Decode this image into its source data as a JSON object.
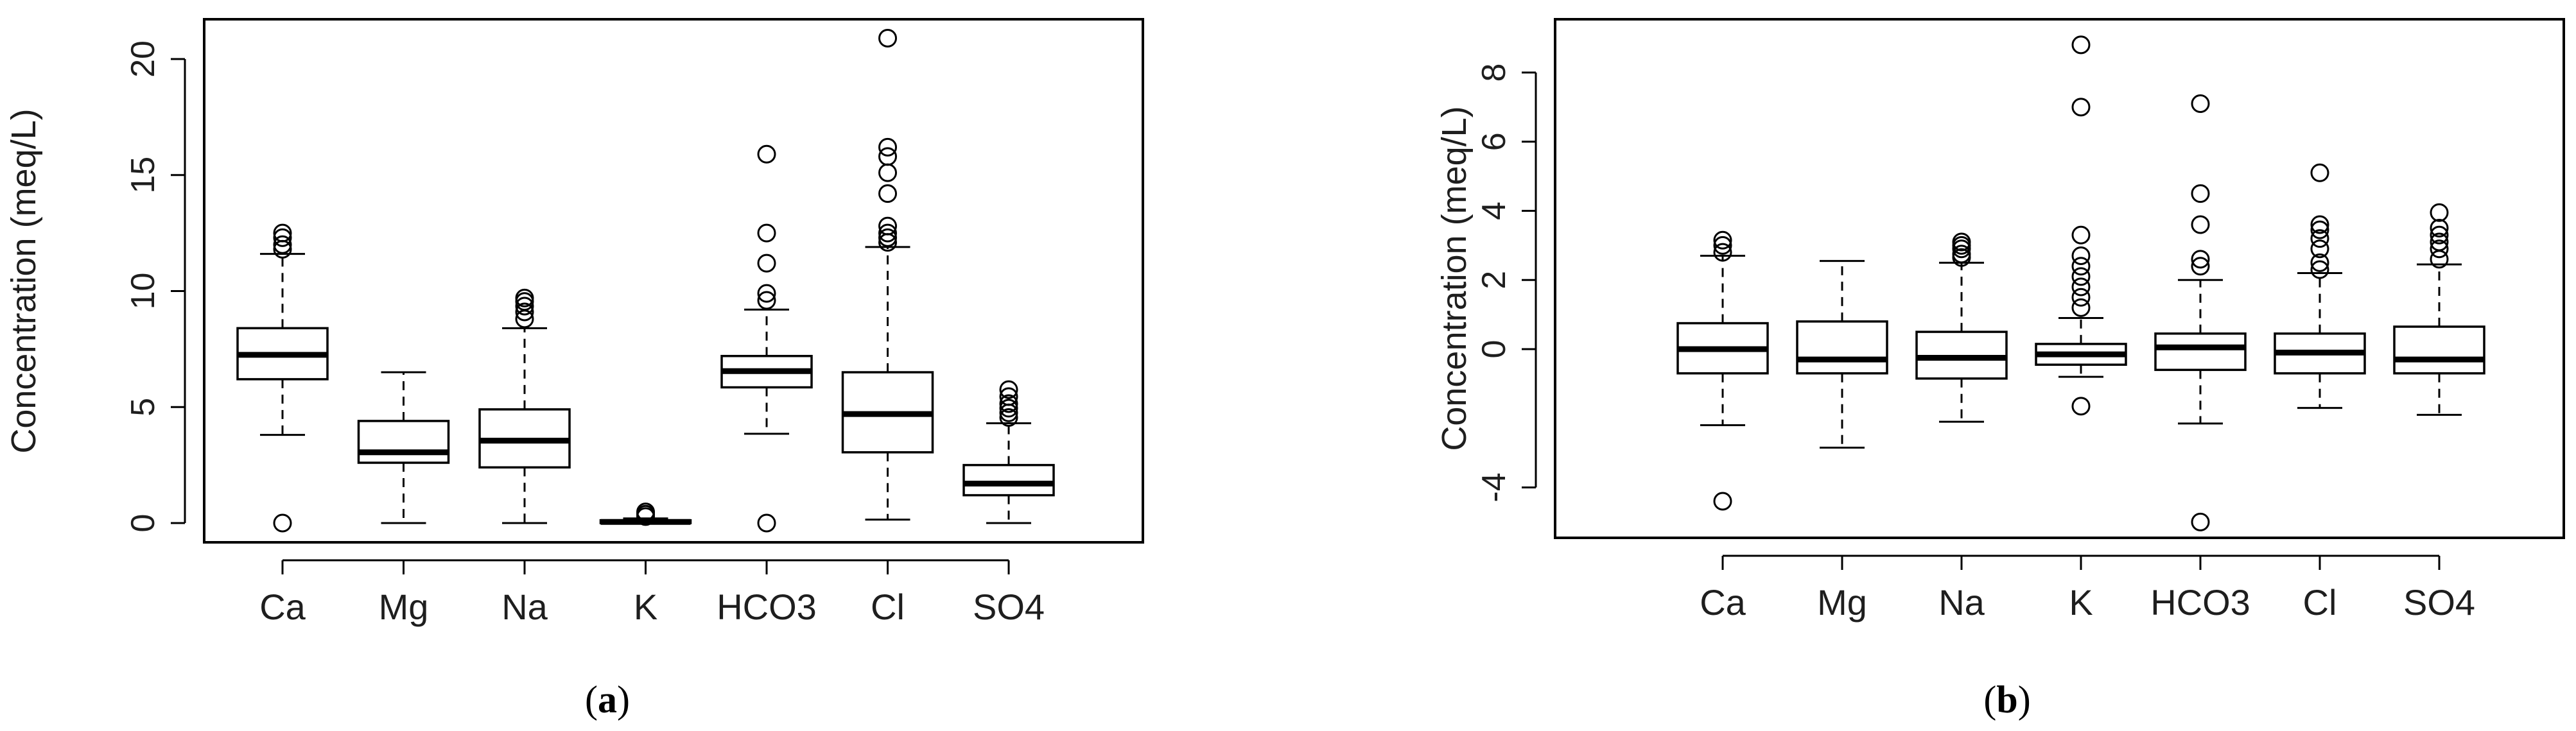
{
  "chart_data": [
    {
      "type": "boxplot",
      "panel_label": "a",
      "ylabel": "Concentration (meq/L)",
      "ylim": [
        0,
        21
      ],
      "yticks": [
        0,
        5,
        10,
        15,
        20
      ],
      "categories": [
        "Ca",
        "Mg",
        "Na",
        "K",
        "HCO3",
        "Cl",
        "SO4"
      ],
      "boxes": [
        {
          "name": "Ca",
          "whisker_low": 3.8,
          "q1": 6.2,
          "median": 7.25,
          "q3": 8.4,
          "whisker_high": 11.6,
          "outliers": [
            0.0,
            11.8,
            12.0,
            12.3,
            12.5
          ]
        },
        {
          "name": "Mg",
          "whisker_low": 0.0,
          "q1": 2.6,
          "median": 3.05,
          "q3": 4.4,
          "whisker_high": 6.5,
          "outliers": []
        },
        {
          "name": "Na",
          "whisker_low": 0.0,
          "q1": 2.4,
          "median": 3.55,
          "q3": 4.9,
          "whisker_high": 8.4,
          "outliers": [
            8.8,
            9.1,
            9.35,
            9.55,
            9.7
          ]
        },
        {
          "name": "K",
          "whisker_low": 0.0,
          "q1": 0.0,
          "median": 0.05,
          "q3": 0.12,
          "whisker_high": 0.2,
          "outliers": [
            0.28,
            0.38,
            0.48
          ]
        },
        {
          "name": "HCO3",
          "whisker_low": 3.85,
          "q1": 5.85,
          "median": 6.55,
          "q3": 7.2,
          "whisker_high": 9.2,
          "outliers": [
            0.0,
            9.6,
            9.9,
            11.2,
            12.5,
            15.9
          ]
        },
        {
          "name": "Cl",
          "whisker_low": 0.15,
          "q1": 3.05,
          "median": 4.7,
          "q3": 6.5,
          "whisker_high": 11.9,
          "outliers": [
            12.1,
            12.3,
            12.5,
            12.8,
            14.2,
            15.1,
            15.8,
            16.2,
            20.9
          ]
        },
        {
          "name": "SO4",
          "whisker_low": 0.0,
          "q1": 1.2,
          "median": 1.7,
          "q3": 2.5,
          "whisker_high": 4.3,
          "outliers": [
            4.55,
            4.75,
            4.95,
            5.15,
            5.45,
            5.75
          ]
        }
      ]
    },
    {
      "type": "boxplot",
      "panel_label": "b",
      "ylabel": "Concentration (meq/L)",
      "ylim": [
        -5.4,
        9.4
      ],
      "yticks": [
        -4,
        0,
        2,
        4,
        6,
        8
      ],
      "categories": [
        "Ca",
        "Mg",
        "Na",
        "K",
        "HCO3",
        "Cl",
        "SO4"
      ],
      "boxes": [
        {
          "name": "Ca",
          "whisker_low": -2.2,
          "q1": -0.7,
          "median": 0.0,
          "q3": 0.75,
          "whisker_high": 2.7,
          "outliers": [
            -4.4,
            2.8,
            3.0,
            3.15
          ]
        },
        {
          "name": "Mg",
          "whisker_low": -2.85,
          "q1": -0.7,
          "median": -0.3,
          "q3": 0.8,
          "whisker_high": 2.55,
          "outliers": []
        },
        {
          "name": "Na",
          "whisker_low": -2.1,
          "q1": -0.85,
          "median": -0.25,
          "q3": 0.5,
          "whisker_high": 2.5,
          "outliers": [
            2.65,
            2.75,
            2.9,
            3.0,
            3.1
          ]
        },
        {
          "name": "K",
          "whisker_low": -0.8,
          "q1": -0.45,
          "median": -0.15,
          "q3": 0.15,
          "whisker_high": 0.9,
          "outliers": [
            -1.65,
            1.2,
            1.5,
            1.8,
            2.1,
            2.4,
            2.7,
            3.3,
            7.0,
            8.8
          ]
        },
        {
          "name": "HCO3",
          "whisker_low": -2.15,
          "q1": -0.6,
          "median": 0.05,
          "q3": 0.45,
          "whisker_high": 2.0,
          "outliers": [
            -5.0,
            2.4,
            2.6,
            3.6,
            4.5,
            7.1
          ]
        },
        {
          "name": "Cl",
          "whisker_low": -1.7,
          "q1": -0.7,
          "median": -0.1,
          "q3": 0.45,
          "whisker_high": 2.2,
          "outliers": [
            2.3,
            2.5,
            2.9,
            3.2,
            3.45,
            3.6,
            5.1
          ]
        },
        {
          "name": "SO4",
          "whisker_low": -1.9,
          "q1": -0.7,
          "median": -0.3,
          "q3": 0.65,
          "whisker_high": 2.45,
          "outliers": [
            2.6,
            2.9,
            3.1,
            3.3,
            3.5,
            3.95
          ]
        }
      ]
    }
  ]
}
